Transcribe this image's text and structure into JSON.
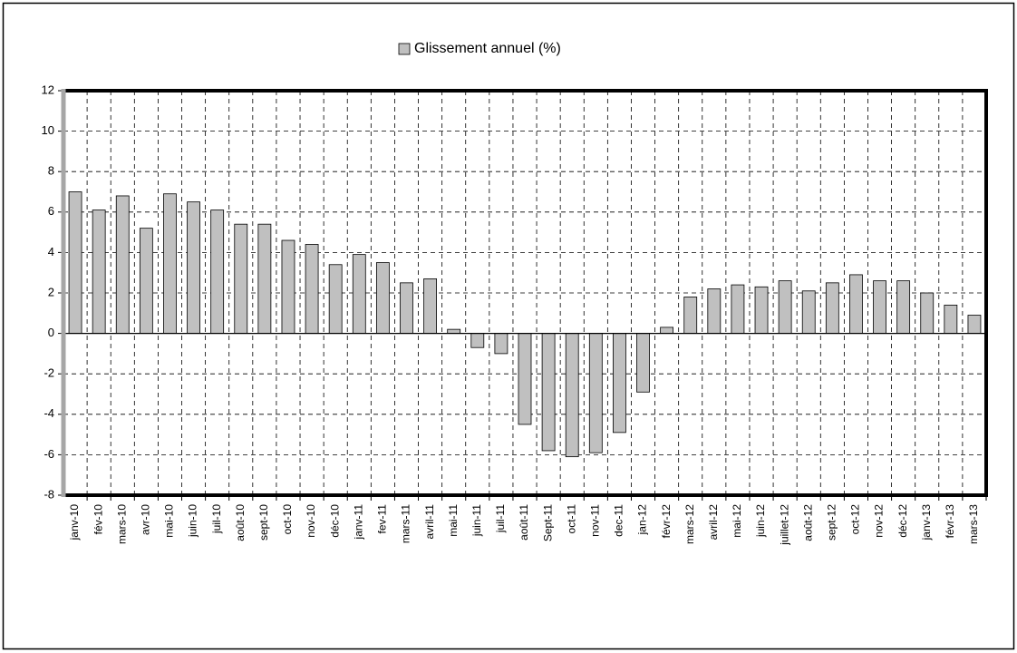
{
  "chart_data": {
    "type": "bar",
    "categories": [
      "janv-10",
      "fév-10",
      "mars-10",
      "avr-10",
      "mai-10",
      "juin-10",
      "juil-10",
      "août-10",
      "sept-10",
      "oct-10",
      "nov-10",
      "déc-10",
      "janv-11",
      "fev-11",
      "mars-11",
      "avril-11",
      "mai-11",
      "juin-11",
      "juil-11",
      "août-11",
      "Sept-11",
      "oct-11",
      "nov-11",
      "dec-11",
      "jan-12",
      "févr-12",
      "mars-12",
      "avril-12",
      "mai-12",
      "juin-12",
      "juillet-12",
      "août-12",
      "sept-12",
      "oct-12",
      "nov-12",
      "déc-12",
      "janv-13",
      "févr-13",
      "mars-13"
    ],
    "series": [
      {
        "name": "Glissement annuel (%)",
        "color": "#c0c0c0",
        "values": [
          7.0,
          6.1,
          6.8,
          5.2,
          6.9,
          6.5,
          6.1,
          5.4,
          5.4,
          4.6,
          4.4,
          3.4,
          3.9,
          3.5,
          2.5,
          2.7,
          0.2,
          -0.7,
          -1.0,
          -4.5,
          -5.8,
          -6.1,
          -5.9,
          -4.9,
          -2.9,
          0.3,
          1.8,
          2.2,
          2.4,
          2.3,
          2.6,
          2.1,
          2.5,
          2.9,
          2.6,
          2.6,
          2.0,
          1.4,
          0.9
        ]
      }
    ],
    "ylim": [
      -8,
      12
    ],
    "yticks": [
      -8,
      -6,
      -4,
      -2,
      0,
      2,
      4,
      6,
      8,
      10,
      12
    ],
    "grid": true,
    "legend": "top"
  }
}
